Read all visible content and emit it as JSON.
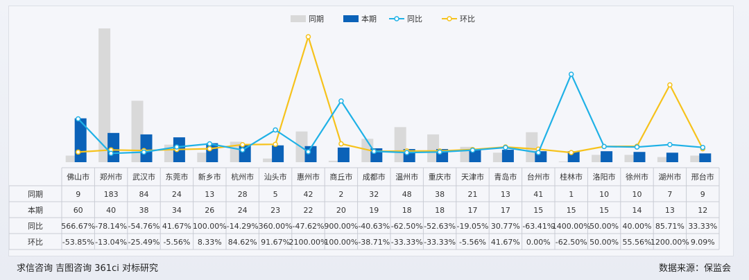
{
  "chart_data": {
    "type": "bar",
    "categories": [
      "佛山市",
      "郑州市",
      "武汉市",
      "东莞市",
      "新乡市",
      "杭州市",
      "汕头市",
      "惠州市",
      "商丘市",
      "成都市",
      "温州市",
      "重庆市",
      "天津市",
      "青岛市",
      "台州市",
      "桂林市",
      "洛阳市",
      "徐州市",
      "湖州市",
      "邢台市"
    ],
    "series": [
      {
        "name": "同期",
        "type": "bar",
        "color": "#d9d9d9",
        "values": [
          9,
          183,
          84,
          24,
          13,
          28,
          5,
          42,
          2,
          32,
          48,
          38,
          21,
          13,
          41,
          1,
          10,
          10,
          7,
          9
        ]
      },
      {
        "name": "本期",
        "type": "bar",
        "color": "#0b62b8",
        "values": [
          60,
          40,
          38,
          34,
          26,
          24,
          23,
          22,
          20,
          19,
          18,
          18,
          17,
          17,
          15,
          15,
          15,
          14,
          13,
          12
        ]
      },
      {
        "name": "同比",
        "type": "line",
        "color": "#1fb1e6",
        "values": [
          566.67,
          -78.14,
          -54.76,
          41.67,
          100.0,
          -14.29,
          360.0,
          -47.62,
          900.0,
          -40.63,
          -62.5,
          -52.63,
          -19.05,
          30.77,
          -63.41,
          1400.0,
          50.0,
          40.0,
          85.71,
          33.33
        ]
      },
      {
        "name": "环比",
        "type": "line",
        "color": "#f6c21b",
        "values": [
          -53.85,
          -13.04,
          -25.49,
          -5.56,
          8.33,
          84.62,
          91.67,
          2100.0,
          100.0,
          -38.71,
          -33.33,
          -33.33,
          -5.56,
          41.67,
          0.0,
          -62.5,
          50.0,
          55.56,
          1200.0,
          9.09
        ]
      }
    ],
    "table_rows": [
      {
        "label": "同期",
        "cells": [
          "9",
          "183",
          "84",
          "24",
          "13",
          "28",
          "5",
          "42",
          "2",
          "32",
          "48",
          "38",
          "21",
          "13",
          "41",
          "1",
          "10",
          "10",
          "7",
          "9"
        ]
      },
      {
        "label": "本期",
        "cells": [
          "60",
          "40",
          "38",
          "34",
          "26",
          "24",
          "23",
          "22",
          "20",
          "19",
          "18",
          "18",
          "17",
          "17",
          "15",
          "15",
          "15",
          "14",
          "13",
          "12"
        ]
      },
      {
        "label": "同比",
        "cells": [
          "566.67%",
          "-78.14%",
          "-54.76%",
          "41.67%",
          "100.00%",
          "-14.29%",
          "360.00%",
          "-47.62%",
          "900.00%",
          "-40.63%",
          "-62.50%",
          "-52.63%",
          "-19.05%",
          "30.77%",
          "-63.41%",
          "1400.00%",
          "50.00%",
          "40.00%",
          "85.71%",
          "33.33%"
        ]
      },
      {
        "label": "环比",
        "cells": [
          "-53.85%",
          "-13.04%",
          "-25.49%",
          "-5.56%",
          "8.33%",
          "84.62%",
          "91.67%",
          "2100.00%",
          "100.00%",
          "-38.71%",
          "-33.33%",
          "-33.33%",
          "-5.56%",
          "41.67%",
          "0.00%",
          "-62.50%",
          "50.00%",
          "55.56%",
          "1200.00%",
          "9.09%"
        ]
      }
    ],
    "legend_position": "top-center"
  },
  "footer": {
    "left": "求信咨询 吉图咨询 361ci 对标研究",
    "right": "数据来源：保监会"
  }
}
